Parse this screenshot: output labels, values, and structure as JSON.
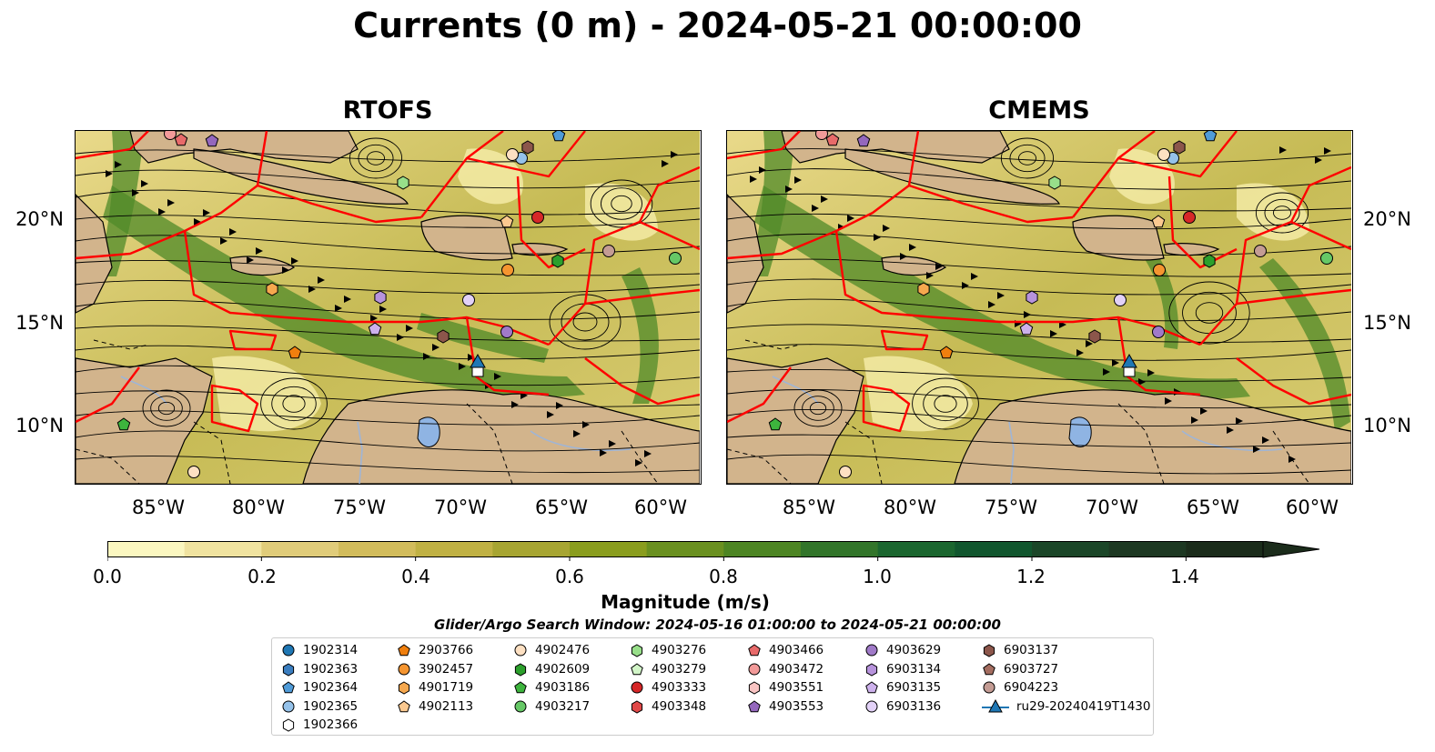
{
  "figure": {
    "suptitle": "Currents (0 m) - 2024-05-21 00:00:00",
    "panels": [
      {
        "title": "RTOFS"
      },
      {
        "title": "CMEMS"
      }
    ],
    "lat_labels": [
      "20°N",
      "15°N",
      "10°N"
    ],
    "lon_labels": [
      "85°W",
      "80°W",
      "75°W",
      "70°W",
      "65°W",
      "60°W"
    ]
  },
  "colors": {
    "land": "#d2b48c",
    "eez_boundary": "#ff0000",
    "water_bodies": "#8fb4e3",
    "rivers": "#9fb5d6",
    "streamlines": "#000000"
  },
  "colorbar": {
    "label": "Magnitude (m/s)",
    "ticks": [
      "0.0",
      "0.2",
      "0.4",
      "0.6",
      "0.8",
      "1.0",
      "1.2",
      "1.4"
    ],
    "min": 0.0,
    "max": 1.5,
    "extend": "max",
    "colors": [
      "#fbf7c0",
      "#f0e3a0",
      "#e0cc7a",
      "#d2bc5c",
      "#c0b144",
      "#a7a532",
      "#8a9d1e",
      "#6a9020",
      "#4d8523",
      "#32752a",
      "#1b662f",
      "#11562e",
      "#1b4628",
      "#1d3822",
      "#1b2c1b"
    ]
  },
  "search_window": "Glider/Argo Search Window: 2024-05-16 01:00:00 to 2024-05-21 00:00:00",
  "legend": {
    "columns": [
      [
        {
          "label": "1902314",
          "marker": "circle",
          "color": "#1f77b4"
        },
        {
          "label": "1902363",
          "marker": "hexagon",
          "color": "#3a7dbf"
        },
        {
          "label": "1902364",
          "marker": "pentagon",
          "color": "#4f9bd8"
        },
        {
          "label": "1902365",
          "marker": "circle",
          "color": "#95c2ea"
        },
        {
          "label": "1902366",
          "marker": "hexagon",
          "color": "#ffffff"
        }
      ],
      [
        {
          "label": "2903766",
          "marker": "pentagon",
          "color": "#f07f0e"
        },
        {
          "label": "3902457",
          "marker": "circle",
          "color": "#f59530"
        },
        {
          "label": "4901719",
          "marker": "hexagon",
          "color": "#f6a84e"
        },
        {
          "label": "4902113",
          "marker": "pentagon",
          "color": "#fbc990"
        }
      ],
      [
        {
          "label": "4902476",
          "marker": "circle",
          "color": "#fde0c2"
        },
        {
          "label": "4902609",
          "marker": "hexagon",
          "color": "#2ca02c"
        },
        {
          "label": "4903186",
          "marker": "pentagon",
          "color": "#3db43d"
        },
        {
          "label": "4903217",
          "marker": "circle",
          "color": "#66c866"
        }
      ],
      [
        {
          "label": "4903276",
          "marker": "hexagon",
          "color": "#98df8a"
        },
        {
          "label": "4903279",
          "marker": "pentagon",
          "color": "#d2f5c8"
        },
        {
          "label": "4903333",
          "marker": "circle",
          "color": "#d62728"
        },
        {
          "label": "4903348",
          "marker": "hexagon",
          "color": "#e04848"
        }
      ],
      [
        {
          "label": "4903466",
          "marker": "pentagon",
          "color": "#e86a6a"
        },
        {
          "label": "4903472",
          "marker": "circle",
          "color": "#f29a99"
        },
        {
          "label": "4903551",
          "marker": "hexagon",
          "color": "#f9c4c3"
        },
        {
          "label": "4903553",
          "marker": "pentagon",
          "color": "#9467bd"
        }
      ],
      [
        {
          "label": "4903629",
          "marker": "circle",
          "color": "#a07ac8"
        },
        {
          "label": "6903134",
          "marker": "hexagon",
          "color": "#b793dc"
        },
        {
          "label": "6903135",
          "marker": "pentagon",
          "color": "#cdb1ec"
        },
        {
          "label": "6903136",
          "marker": "circle",
          "color": "#e2d1f7"
        }
      ],
      [
        {
          "label": "6903137",
          "marker": "hexagon",
          "color": "#8c564b"
        },
        {
          "label": "6903727",
          "marker": "pentagon",
          "color": "#a46d60"
        },
        {
          "label": "6904223",
          "marker": "circle",
          "color": "#c49c94"
        },
        {
          "label": "ru29-20240419T1430",
          "marker": "triangle-line",
          "color": "#1f77b4"
        }
      ]
    ]
  }
}
